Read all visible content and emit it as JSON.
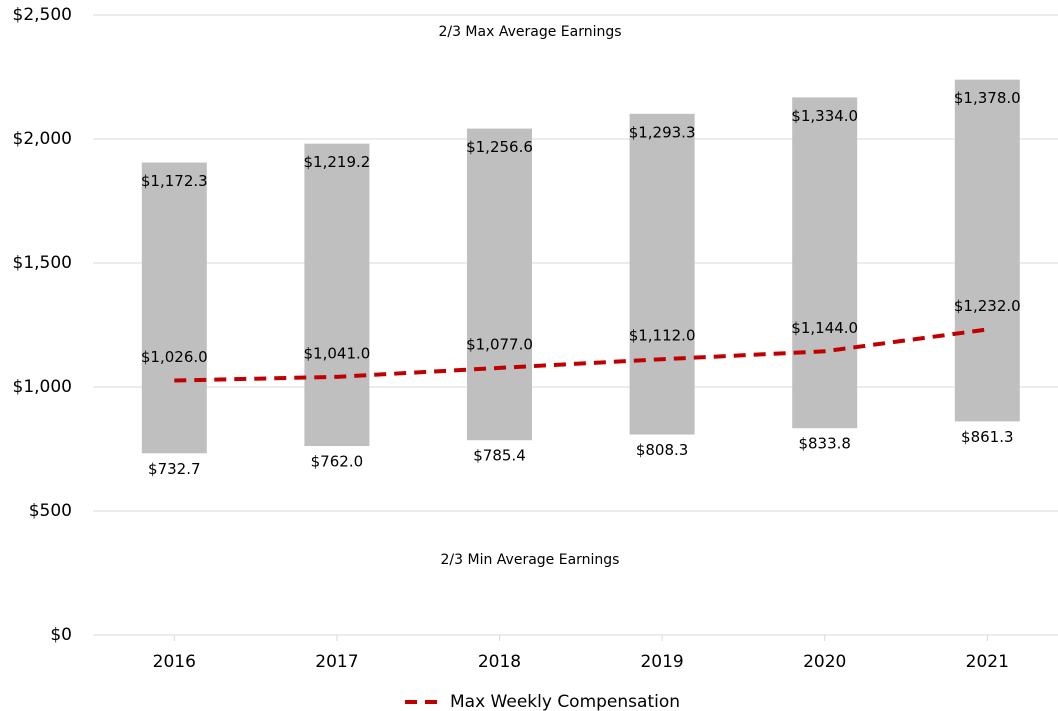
{
  "chart_data": {
    "type": "floating-bar-line",
    "categories": [
      "2016",
      "2017",
      "2018",
      "2019",
      "2020",
      "2021"
    ],
    "bar_base": {
      "values": [
        732.7,
        762.0,
        785.4,
        808.3,
        833.8,
        861.3
      ],
      "value_labels": [
        "$732.7",
        "$762.0",
        "$785.4",
        "$808.3",
        "$833.8",
        "$861.3"
      ]
    },
    "bar_segment": {
      "color": "#bfbfbf",
      "values": [
        1172.3,
        1219.2,
        1256.6,
        1293.3,
        1334.0,
        1378.0
      ],
      "value_labels": [
        "$1,172.3",
        "$1,219.2",
        "$1,256.6",
        "$1,293.3",
        "$1,334.0",
        "$1,378.0"
      ]
    },
    "series": [
      {
        "name": "Max Weekly Compensation",
        "color": "#c00000",
        "dashed": true,
        "values": [
          1026.0,
          1041.0,
          1077.0,
          1112.0,
          1144.0,
          1232.0
        ],
        "value_labels": [
          "$1,026.0",
          "$1,041.0",
          "$1,077.0",
          "$1,112.0",
          "$1,144.0",
          "$1,232.0"
        ]
      }
    ],
    "annotations": [
      "2/3 Max Average Earnings",
      "2/3 Min Average Earnings"
    ],
    "ylim": [
      0,
      2500
    ],
    "yticks": [
      {
        "value": 0,
        "label": "$0"
      },
      {
        "value": 500,
        "label": "$500"
      },
      {
        "value": 1000,
        "label": "$1,000"
      },
      {
        "value": 1500,
        "label": "$1,500"
      },
      {
        "value": 2000,
        "label": "$2,000"
      },
      {
        "value": 2500,
        "label": "$2,500"
      }
    ],
    "grid": true,
    "legend": "bottom"
  }
}
